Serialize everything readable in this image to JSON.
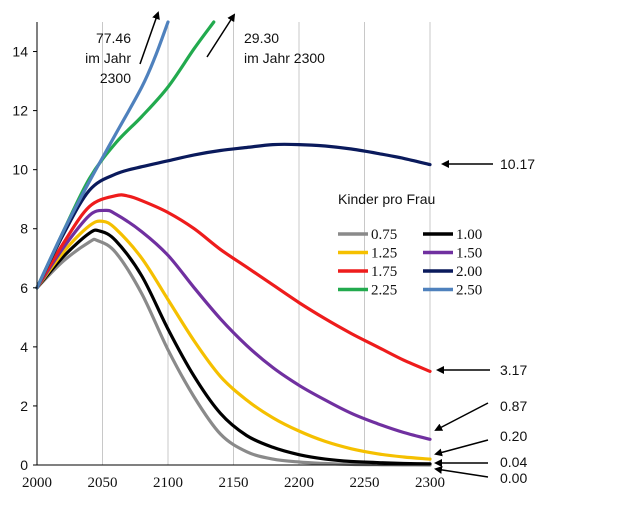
{
  "chart_data": {
    "type": "line",
    "title": "",
    "xlabel": "",
    "ylabel": "",
    "xlim": [
      2000,
      2300
    ],
    "ylim": [
      0,
      15
    ],
    "x_ticks": [
      "2000",
      "2050",
      "2100",
      "2150",
      "2200",
      "2250",
      "2300"
    ],
    "y_ticks": [
      "0",
      "2",
      "4",
      "6",
      "8",
      "10",
      "12",
      "14"
    ],
    "grid": "vertical",
    "legend": {
      "title": "Kinder pro Frau",
      "position": "right",
      "entries": [
        "0.75",
        "1.00",
        "1.25",
        "1.50",
        "1.75",
        "2.00",
        "2.25",
        "2.50"
      ]
    },
    "series": [
      {
        "name": "0.75",
        "color": "#8a8a8a",
        "x": [
          2000,
          2020,
          2040,
          2046,
          2060,
          2080,
          2100,
          2120,
          2140,
          2160,
          2180,
          2200,
          2220,
          2240,
          2260,
          2280,
          2300
        ],
        "values": [
          6.0,
          6.9,
          7.55,
          7.6,
          7.2,
          5.8,
          3.9,
          2.3,
          1.05,
          0.45,
          0.2,
          0.1,
          0.05,
          0.02,
          0.01,
          0.005,
          0.0
        ]
      },
      {
        "name": "1.00",
        "color": "#000000",
        "x": [
          2000,
          2020,
          2040,
          2048,
          2060,
          2080,
          2100,
          2120,
          2140,
          2160,
          2180,
          2200,
          2220,
          2240,
          2260,
          2280,
          2300
        ],
        "values": [
          6.0,
          7.05,
          7.85,
          7.92,
          7.6,
          6.4,
          4.6,
          3.0,
          1.75,
          1.0,
          0.6,
          0.35,
          0.2,
          0.12,
          0.08,
          0.05,
          0.04
        ]
      },
      {
        "name": "1.25",
        "color": "#f5c000",
        "x": [
          2000,
          2020,
          2040,
          2050,
          2060,
          2080,
          2100,
          2120,
          2140,
          2160,
          2180,
          2200,
          2220,
          2240,
          2260,
          2280,
          2300
        ],
        "values": [
          6.0,
          7.2,
          8.1,
          8.25,
          8.0,
          7.0,
          5.6,
          4.2,
          3.0,
          2.2,
          1.6,
          1.15,
          0.8,
          0.55,
          0.38,
          0.27,
          0.2
        ]
      },
      {
        "name": "1.50",
        "color": "#7030a0",
        "x": [
          2000,
          2020,
          2040,
          2052,
          2060,
          2080,
          2100,
          2120,
          2140,
          2160,
          2180,
          2200,
          2220,
          2240,
          2260,
          2280,
          2300
        ],
        "values": [
          6.0,
          7.35,
          8.45,
          8.62,
          8.5,
          7.9,
          7.1,
          6.0,
          4.95,
          4.05,
          3.3,
          2.7,
          2.2,
          1.75,
          1.4,
          1.1,
          0.87
        ]
      },
      {
        "name": "1.75",
        "color": "#ee1c1c",
        "x": [
          2000,
          2020,
          2040,
          2060,
          2070,
          2080,
          2100,
          2120,
          2140,
          2160,
          2180,
          2200,
          2220,
          2240,
          2260,
          2280,
          2300
        ],
        "values": [
          6.0,
          7.5,
          8.75,
          9.12,
          9.1,
          8.95,
          8.55,
          8.0,
          7.3,
          6.7,
          6.1,
          5.5,
          4.95,
          4.45,
          4.0,
          3.55,
          3.17
        ]
      },
      {
        "name": "2.00",
        "color": "#0a1a5c",
        "x": [
          2000,
          2020,
          2040,
          2060,
          2080,
          2100,
          2120,
          2140,
          2160,
          2180,
          2200,
          2220,
          2240,
          2260,
          2280,
          2300
        ],
        "values": [
          6.0,
          7.8,
          9.3,
          9.85,
          10.1,
          10.3,
          10.5,
          10.65,
          10.75,
          10.85,
          10.85,
          10.8,
          10.7,
          10.55,
          10.38,
          10.17
        ]
      },
      {
        "name": "2.25",
        "color": "#22aa4e",
        "x": [
          2000,
          2020,
          2040,
          2060,
          2080,
          2100,
          2120,
          2135
        ],
        "values": [
          6.0,
          7.9,
          9.7,
          10.9,
          11.8,
          12.8,
          14.1,
          15.0
        ]
      },
      {
        "name": "2.50",
        "color": "#4f81bd",
        "x": [
          2000,
          2020,
          2040,
          2060,
          2080,
          2090,
          2100
        ],
        "values": [
          6.0,
          7.9,
          9.6,
          11.2,
          12.8,
          13.8,
          15.0
        ]
      }
    ],
    "annotations": [
      {
        "text": "10.17",
        "series": "2.00"
      },
      {
        "text": "3.17",
        "series": "1.75"
      },
      {
        "text": "0.87",
        "series": "1.50"
      },
      {
        "text": "0.20",
        "series": "1.25"
      },
      {
        "text": "0.04",
        "series": "1.00"
      },
      {
        "text": "0.00",
        "series": "0.75"
      }
    ],
    "off_chart_notes": [
      {
        "series": "2.50",
        "lines": [
          "77.46",
          "im Jahr",
          "2300"
        ]
      },
      {
        "series": "2.25",
        "lines": [
          "29.30",
          "im Jahr 2300"
        ]
      }
    ]
  }
}
